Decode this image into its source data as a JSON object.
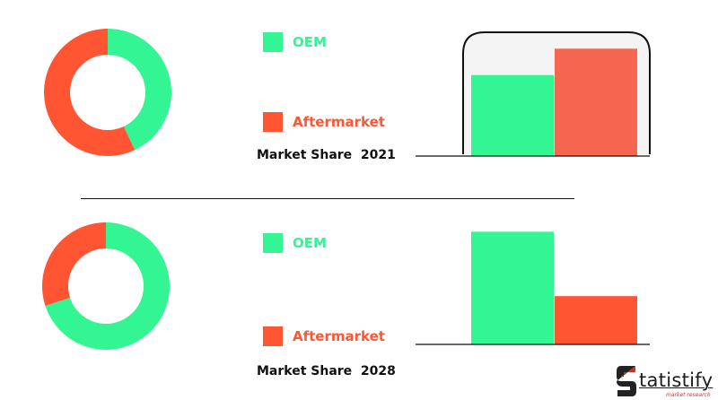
{
  "colors": {
    "oem": "#33F593",
    "aftermarket": "#FF5533",
    "aftermarket_2021_bar": "#F56550"
  },
  "legend": {
    "oem_label": "OEM",
    "aftermarket_label": "Aftermarket"
  },
  "chart_data": [
    {
      "type": "pie",
      "categories": [
        "OEM",
        "Aftermarket"
      ],
      "values": [
        43,
        57
      ],
      "title": "Market Share  2021"
    },
    {
      "type": "bar",
      "categories": [
        "OEM",
        "Aftermarket"
      ],
      "values": [
        43,
        57
      ],
      "title": "Market Share  2021",
      "ylim": [
        0,
        60
      ]
    },
    {
      "type": "pie",
      "categories": [
        "OEM",
        "Aftermarket"
      ],
      "values": [
        70,
        30
      ],
      "title": "Market Share  2028"
    },
    {
      "type": "bar",
      "categories": [
        "OEM",
        "Aftermarket"
      ],
      "values": [
        70,
        30
      ],
      "title": "Market Share  2028",
      "ylim": [
        0,
        73
      ]
    }
  ],
  "captions": {
    "y2021": "Market Share  2021",
    "y2028": "Market Share  2028"
  },
  "logo": {
    "letter": "S",
    "text": "tatistify",
    "subtext": "market research"
  }
}
